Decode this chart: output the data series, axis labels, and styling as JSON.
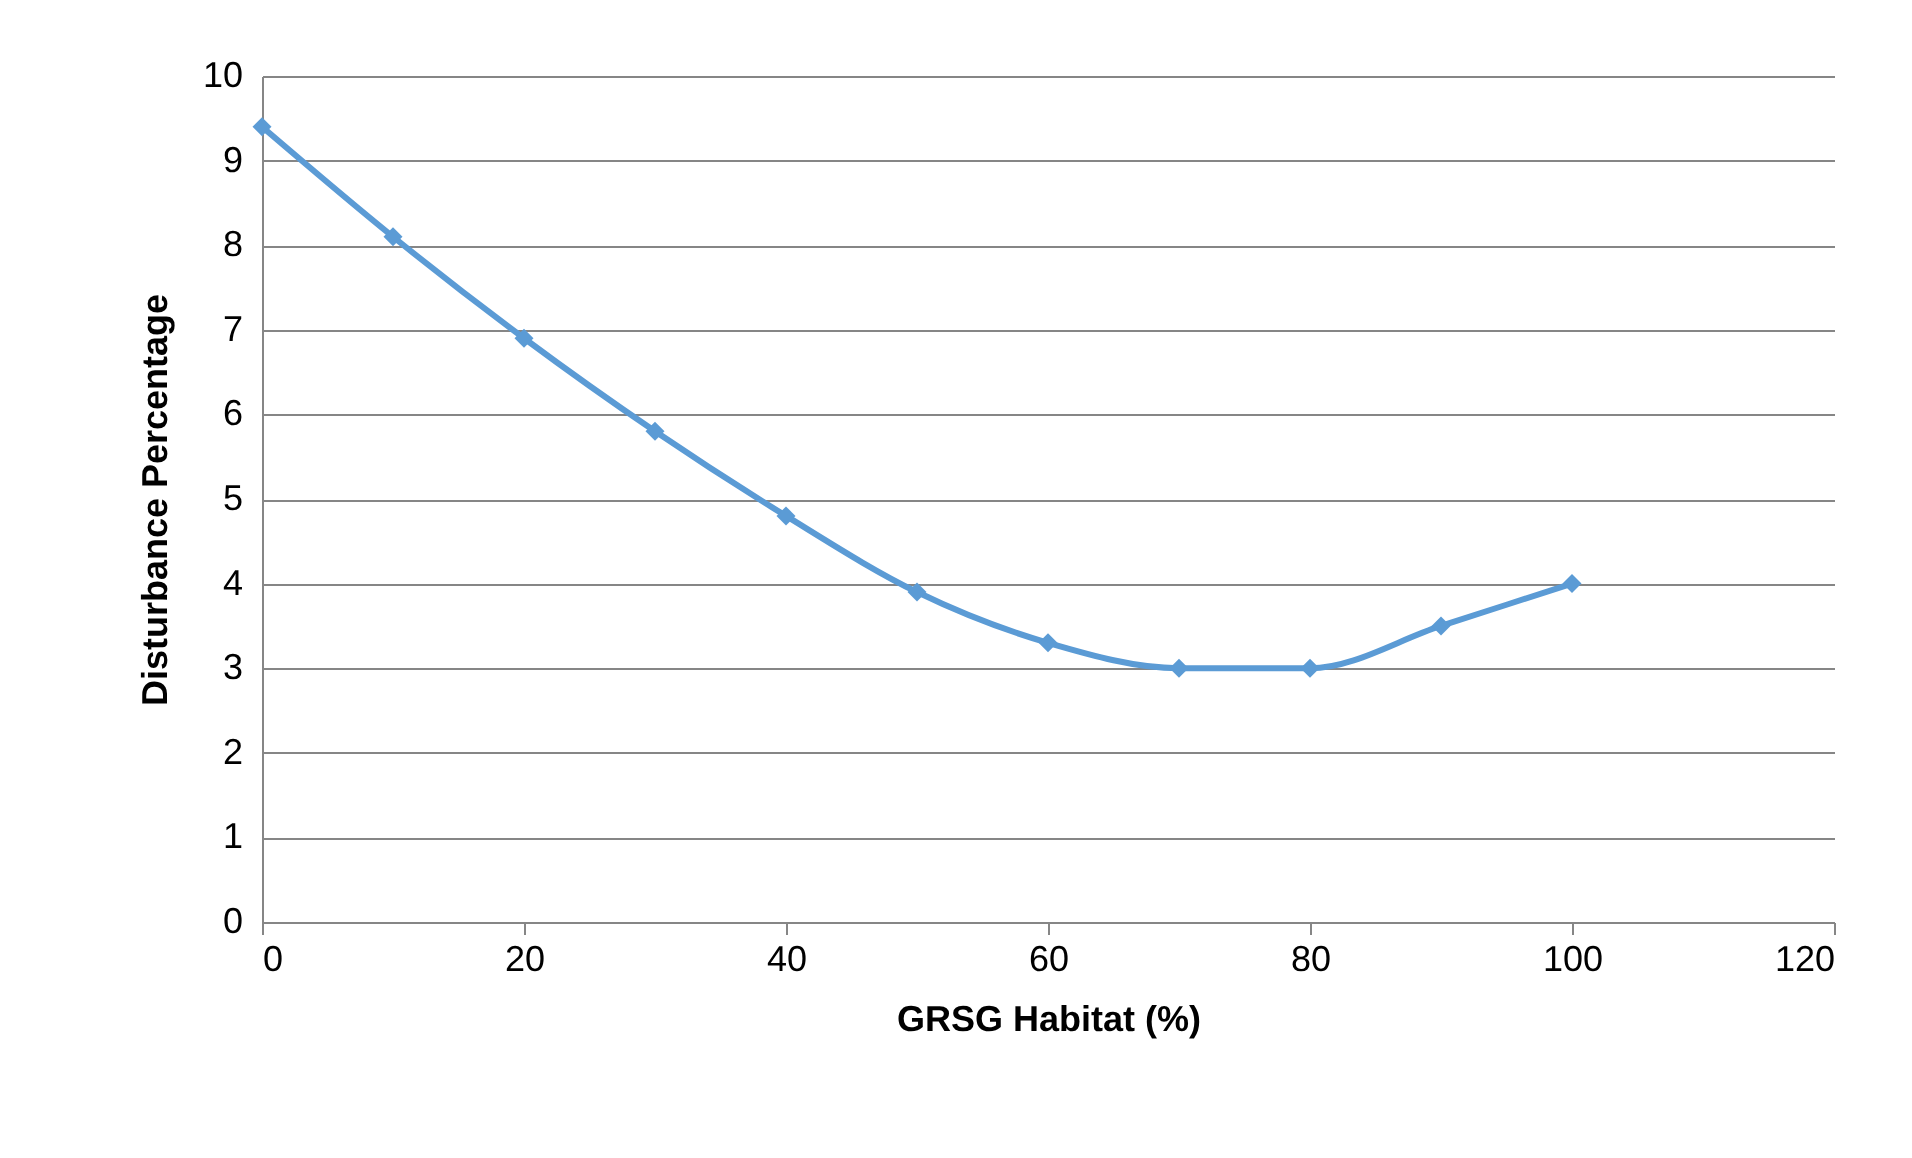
{
  "chart_data": {
    "type": "line",
    "xlabel": "GRSG Habitat (%)",
    "ylabel": "Disturbance Percentage",
    "x": [
      0,
      10,
      20,
      30,
      40,
      50,
      60,
      70,
      80,
      90,
      100
    ],
    "series": [
      {
        "color": "#5b9bd5",
        "values": [
          9.4,
          8.1,
          6.9,
          5.8,
          4.8,
          3.9,
          3.3,
          3.0,
          3.0,
          3.5,
          4.0
        ]
      }
    ],
    "xlim": [
      0,
      120
    ],
    "xticks": [
      0,
      20,
      40,
      60,
      80,
      100,
      120
    ],
    "ylim": [
      0,
      10
    ],
    "yticks": [
      0,
      1,
      2,
      3,
      4,
      5,
      6,
      7,
      8,
      9,
      10
    ],
    "grid": "y",
    "marker": "diamond",
    "line_style": "solid",
    "legend": false
  }
}
